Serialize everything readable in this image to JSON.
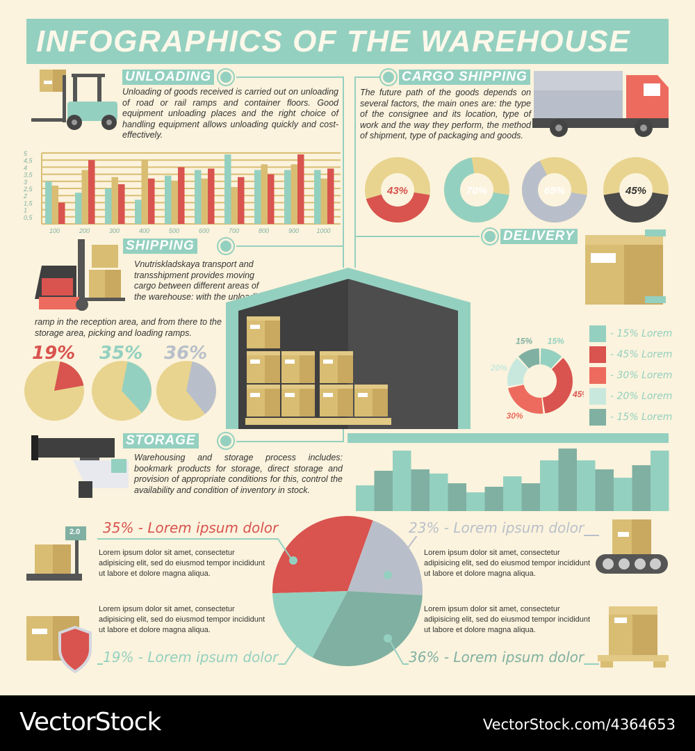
{
  "title": "INFOGRAPHICS OF THE WAREHOUSE",
  "unloading": {
    "label": "UNLOADING",
    "text": "Unloading of goods received is carried out on unloading of road or rail ramps and container floors. Good equipment unloading places and the right choice of handling equipment allows unloading quickly and cost-effectively."
  },
  "cargo": {
    "label": "CARGO SHIPPING",
    "text": "The future path of the goods depends on several factors, the main ones are: the type of the consignee and its location, type of work and the way they perform, the method of shipment, type of packaging and goods.",
    "donuts": [
      {
        "label": "43%",
        "value": 43,
        "color": "#d9534f"
      },
      {
        "label": "70%",
        "value": 70,
        "color": "#94d0c0"
      },
      {
        "label": "65%",
        "value": 65,
        "color": "#b9bfca"
      },
      {
        "label": "45%",
        "value": 45,
        "color": "#4a4a4a"
      }
    ]
  },
  "shipping": {
    "label": "SHIPPING",
    "text1": "Vnutriskladskaya transport and transshipment provides moving cargo between different areas of the warehouse: with the unloading",
    "text2": "ramp in the reception area, and from there to the storage area, picking and loading ramps.",
    "pies": [
      {
        "label": "19%",
        "value": 19,
        "color": "#d9534f"
      },
      {
        "label": "35%",
        "value": 35,
        "color": "#94d0c0"
      },
      {
        "label": "36%",
        "value": 36,
        "color": "#b9bfca"
      }
    ]
  },
  "delivery": {
    "label": "DELIVERY",
    "donut": [
      {
        "label": "15%",
        "value": 15,
        "color": "#94d0c0"
      },
      {
        "label": "45%",
        "value": 45,
        "color": "#d9534f"
      },
      {
        "label": "30%",
        "value": 30,
        "color": "#ec6b5e"
      },
      {
        "label": "20%",
        "value": 20,
        "color": "#c8e8de"
      },
      {
        "label": "15%",
        "value": 15,
        "color": "#80b0a2"
      }
    ],
    "legend": [
      {
        "label": "- 15% Lorem",
        "color": "#94d0c0"
      },
      {
        "label": "- 45% Lorem",
        "color": "#d9534f"
      },
      {
        "label": "- 30% Lorem",
        "color": "#ec6b5e"
      },
      {
        "label": "- 20% Lorem",
        "color": "#c8e8de"
      },
      {
        "label": "- 15% Lorem",
        "color": "#80b0a2"
      }
    ]
  },
  "storage": {
    "label": "STORAGE",
    "text": "Warehousing and storage process includes: bookmark products for storage, direct storage and provision of appropriate conditions for this, control the availability and condition of inventory in stock."
  },
  "chart_data": [
    {
      "type": "bar",
      "categories": [
        "100",
        "200",
        "300",
        "400",
        "500",
        "600",
        "700",
        "800",
        "900",
        "1000"
      ],
      "series": [
        {
          "values": [
            3.0,
            2.2,
            2.5,
            1.7,
            3.4,
            3.8,
            4.9,
            3.8,
            3.8,
            3.8
          ],
          "color": "#94d0c0"
        },
        {
          "values": [
            2.7,
            3.8,
            3.3,
            4.5,
            3.0,
            3.2,
            2.6,
            4.2,
            4.2,
            3.2
          ],
          "color": "#d9bd73"
        },
        {
          "values": [
            1.5,
            4.5,
            2.8,
            3.2,
            4.0,
            3.9,
            3.3,
            3.5,
            4.9,
            3.9
          ],
          "color": "#d9534f"
        }
      ],
      "yticks": [
        "0,5",
        "1",
        "1,5",
        "2",
        "2,5",
        "3",
        "3,5",
        "4",
        "4,5",
        "5"
      ],
      "ylim": [
        0,
        5
      ],
      "grid": true
    },
    {
      "type": "bar",
      "values": [
        37,
        58,
        87,
        60,
        54,
        40,
        27,
        35,
        50,
        40,
        73,
        90,
        73,
        60,
        48,
        66,
        87
      ],
      "colors": [
        "#94d0c0",
        "#80b0a2"
      ]
    },
    {
      "type": "pie",
      "slices": [
        {
          "label": "35% - Lorem ipsum dolor",
          "value": 35,
          "color": "#d9534f"
        },
        {
          "label": "23% - Lorem ipsum dolor",
          "value": 23,
          "color": "#b9bfca"
        },
        {
          "label": "36% - Lorem ipsum dolor",
          "value": 36,
          "color": "#80b0a2"
        },
        {
          "label": "19% - Lorem ipsum dolor",
          "value": 19,
          "color": "#94d0c0"
        }
      ]
    }
  ],
  "lorem": "Lorem ipsum dolor sit amet, consectetur adipisicing elit, sed do eiusmod tempor incididunt ut labore et dolore magna aliqua.",
  "scale_display": "2.0",
  "watermark": {
    "brand": "VectorStock",
    "id": "VectorStock.com/4364653"
  }
}
